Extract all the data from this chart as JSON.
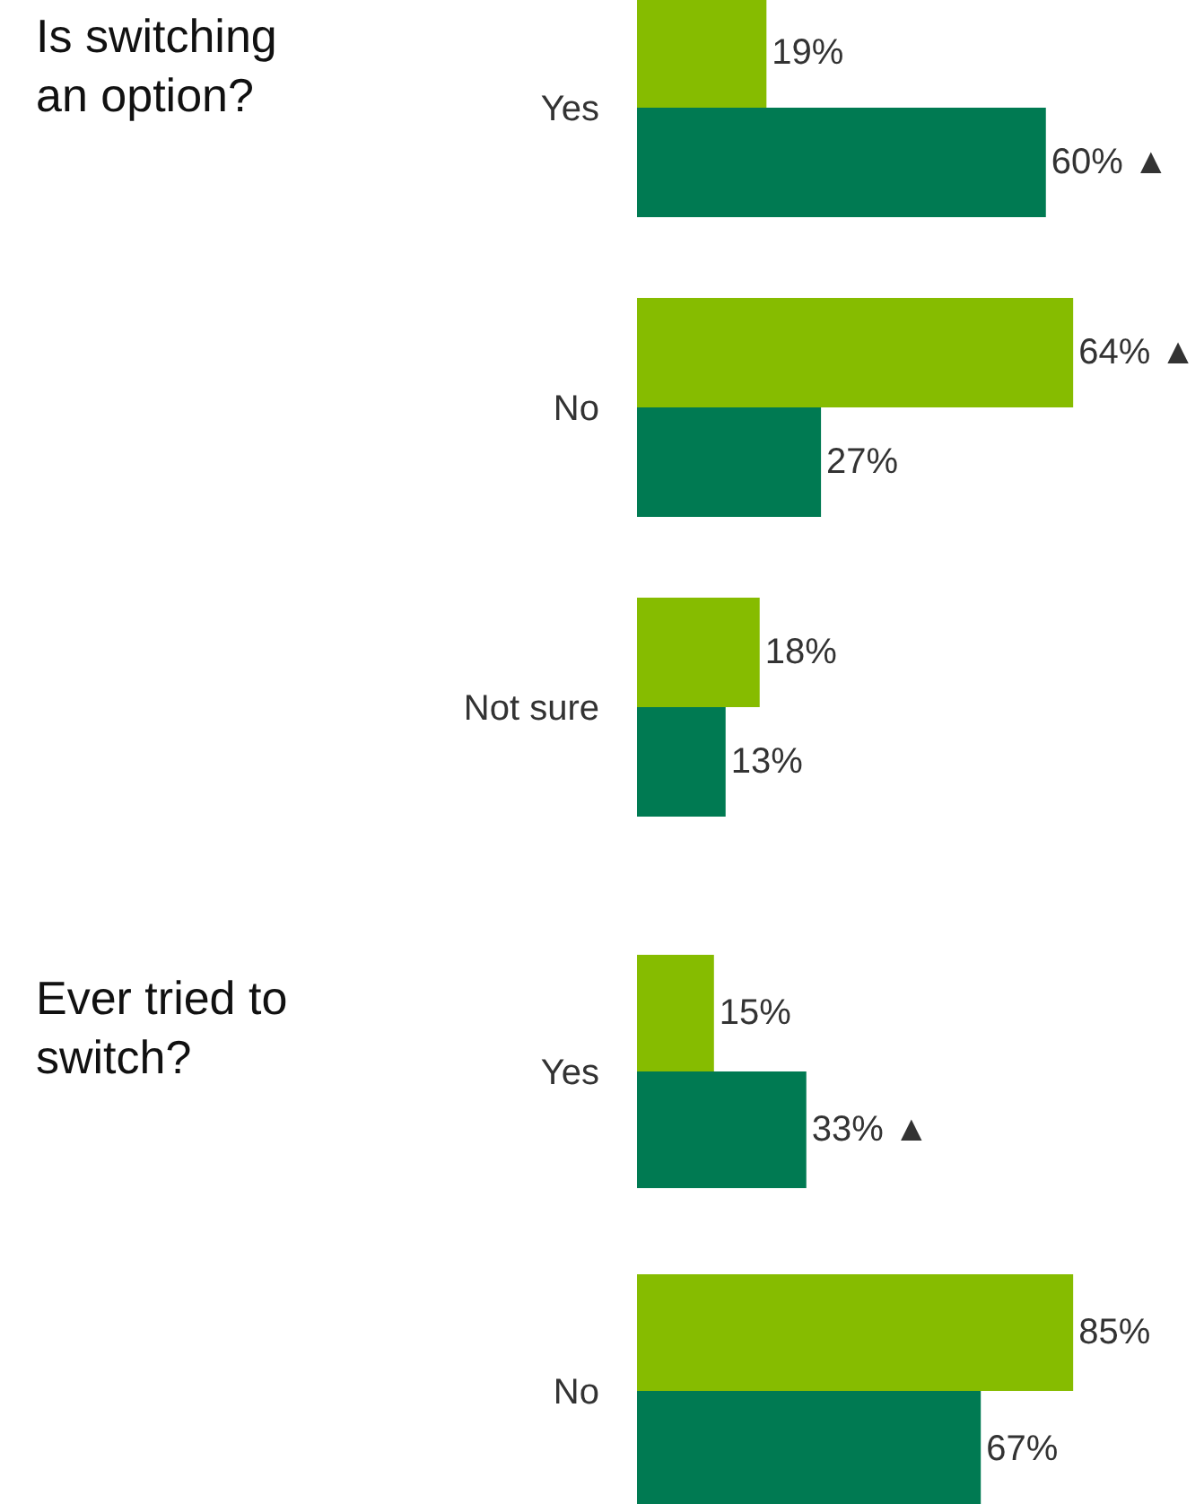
{
  "chart_data": [
    {
      "type": "bar",
      "title": "Is switching an option?",
      "orientation": "horizontal",
      "categories": [
        "Yes",
        "No",
        "Not sure"
      ],
      "series": [
        {
          "color": "#86bc00",
          "values": [
            19,
            64,
            18
          ],
          "value_labels": [
            "19%",
            "64% ▲",
            "18%"
          ]
        },
        {
          "color": "#007a52",
          "values": [
            60,
            27,
            13
          ],
          "value_labels": [
            "60% ▲",
            "27%",
            "13%"
          ]
        }
      ]
    },
    {
      "type": "bar",
      "title": "Ever tried to switch?",
      "orientation": "horizontal",
      "categories": [
        "Yes",
        "No"
      ],
      "series": [
        {
          "color": "#86bc00",
          "values": [
            15,
            85
          ],
          "value_labels": [
            "15%",
            "85%"
          ]
        },
        {
          "color": "#007a52",
          "values": [
            33,
            67
          ],
          "value_labels": [
            "33% ▲",
            "67%"
          ]
        }
      ]
    }
  ]
}
